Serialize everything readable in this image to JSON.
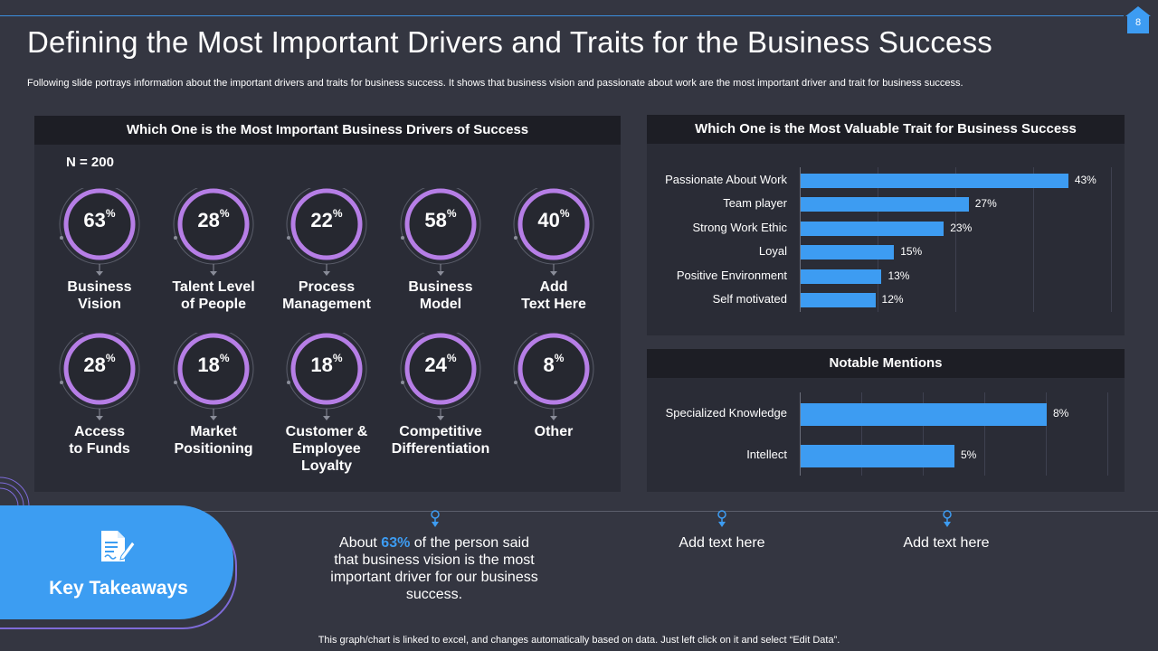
{
  "page": {
    "number": "8",
    "title": "Defining the Most Important Drivers and Traits for the Business Success",
    "subtitle": "Following slide portrays information about the important drivers and traits for business success. It shows that business vision and passionate about work are the most important driver and trait for  business success.",
    "footer": "This graph/chart is linked to excel,  and changes automatically based on data. Just left click on it and select “Edit Data”."
  },
  "colors": {
    "accent": "#3d9cf2",
    "ring": "#b67ee6",
    "panel": "#2a2c36",
    "header": "#1d1e25",
    "background": "#343641"
  },
  "drivers": {
    "header": "Which One is the Most Important Business Drivers of Success",
    "n_label": "N = 200",
    "items": [
      {
        "value": "63",
        "label": "Business\nVision"
      },
      {
        "value": "28",
        "label": "Talent Level\nof People"
      },
      {
        "value": "22",
        "label": "Process\nManagement"
      },
      {
        "value": "58",
        "label": "Business\nModel"
      },
      {
        "value": "40",
        "label": "Add\nText Here"
      },
      {
        "value": "28",
        "label": "Access\nto Funds"
      },
      {
        "value": "18",
        "label": "Market\nPositioning"
      },
      {
        "value": "18",
        "label": "Customer &\nEmployee\nLoyalty"
      },
      {
        "value": "24",
        "label": "Competitive\nDifferentiation"
      },
      {
        "value": "8",
        "label": "Other"
      }
    ],
    "percent_symbol": "%"
  },
  "chart_data": [
    {
      "type": "bar",
      "orientation": "horizontal",
      "title": "Which One is the Most Valuable Trait for Business Success",
      "categories": [
        "Passionate About Work",
        "Team player",
        "Strong Work Ethic",
        "Loyal",
        "Positive Environment",
        "Self motivated"
      ],
      "values": [
        43,
        27,
        23,
        15,
        13,
        12
      ],
      "value_labels": [
        "43%",
        "27%",
        "23%",
        "15%",
        "13%",
        "12%"
      ],
      "xlim": [
        0,
        50
      ]
    },
    {
      "type": "bar",
      "orientation": "horizontal",
      "title": "Notable Mentions",
      "categories": [
        "Specialized Knowledge",
        "Intellect"
      ],
      "values": [
        8,
        5
      ],
      "value_labels": [
        "8%",
        "5%"
      ],
      "xlim": [
        0,
        10
      ]
    }
  ],
  "takeaways": {
    "title": "Key Takeaways",
    "note1_pre": "About ",
    "note1_highlight": "63%",
    "note1_post": " of the person said that business vision is the most important driver for our business success.",
    "note2": "Add text here",
    "note3": "Add text here"
  }
}
